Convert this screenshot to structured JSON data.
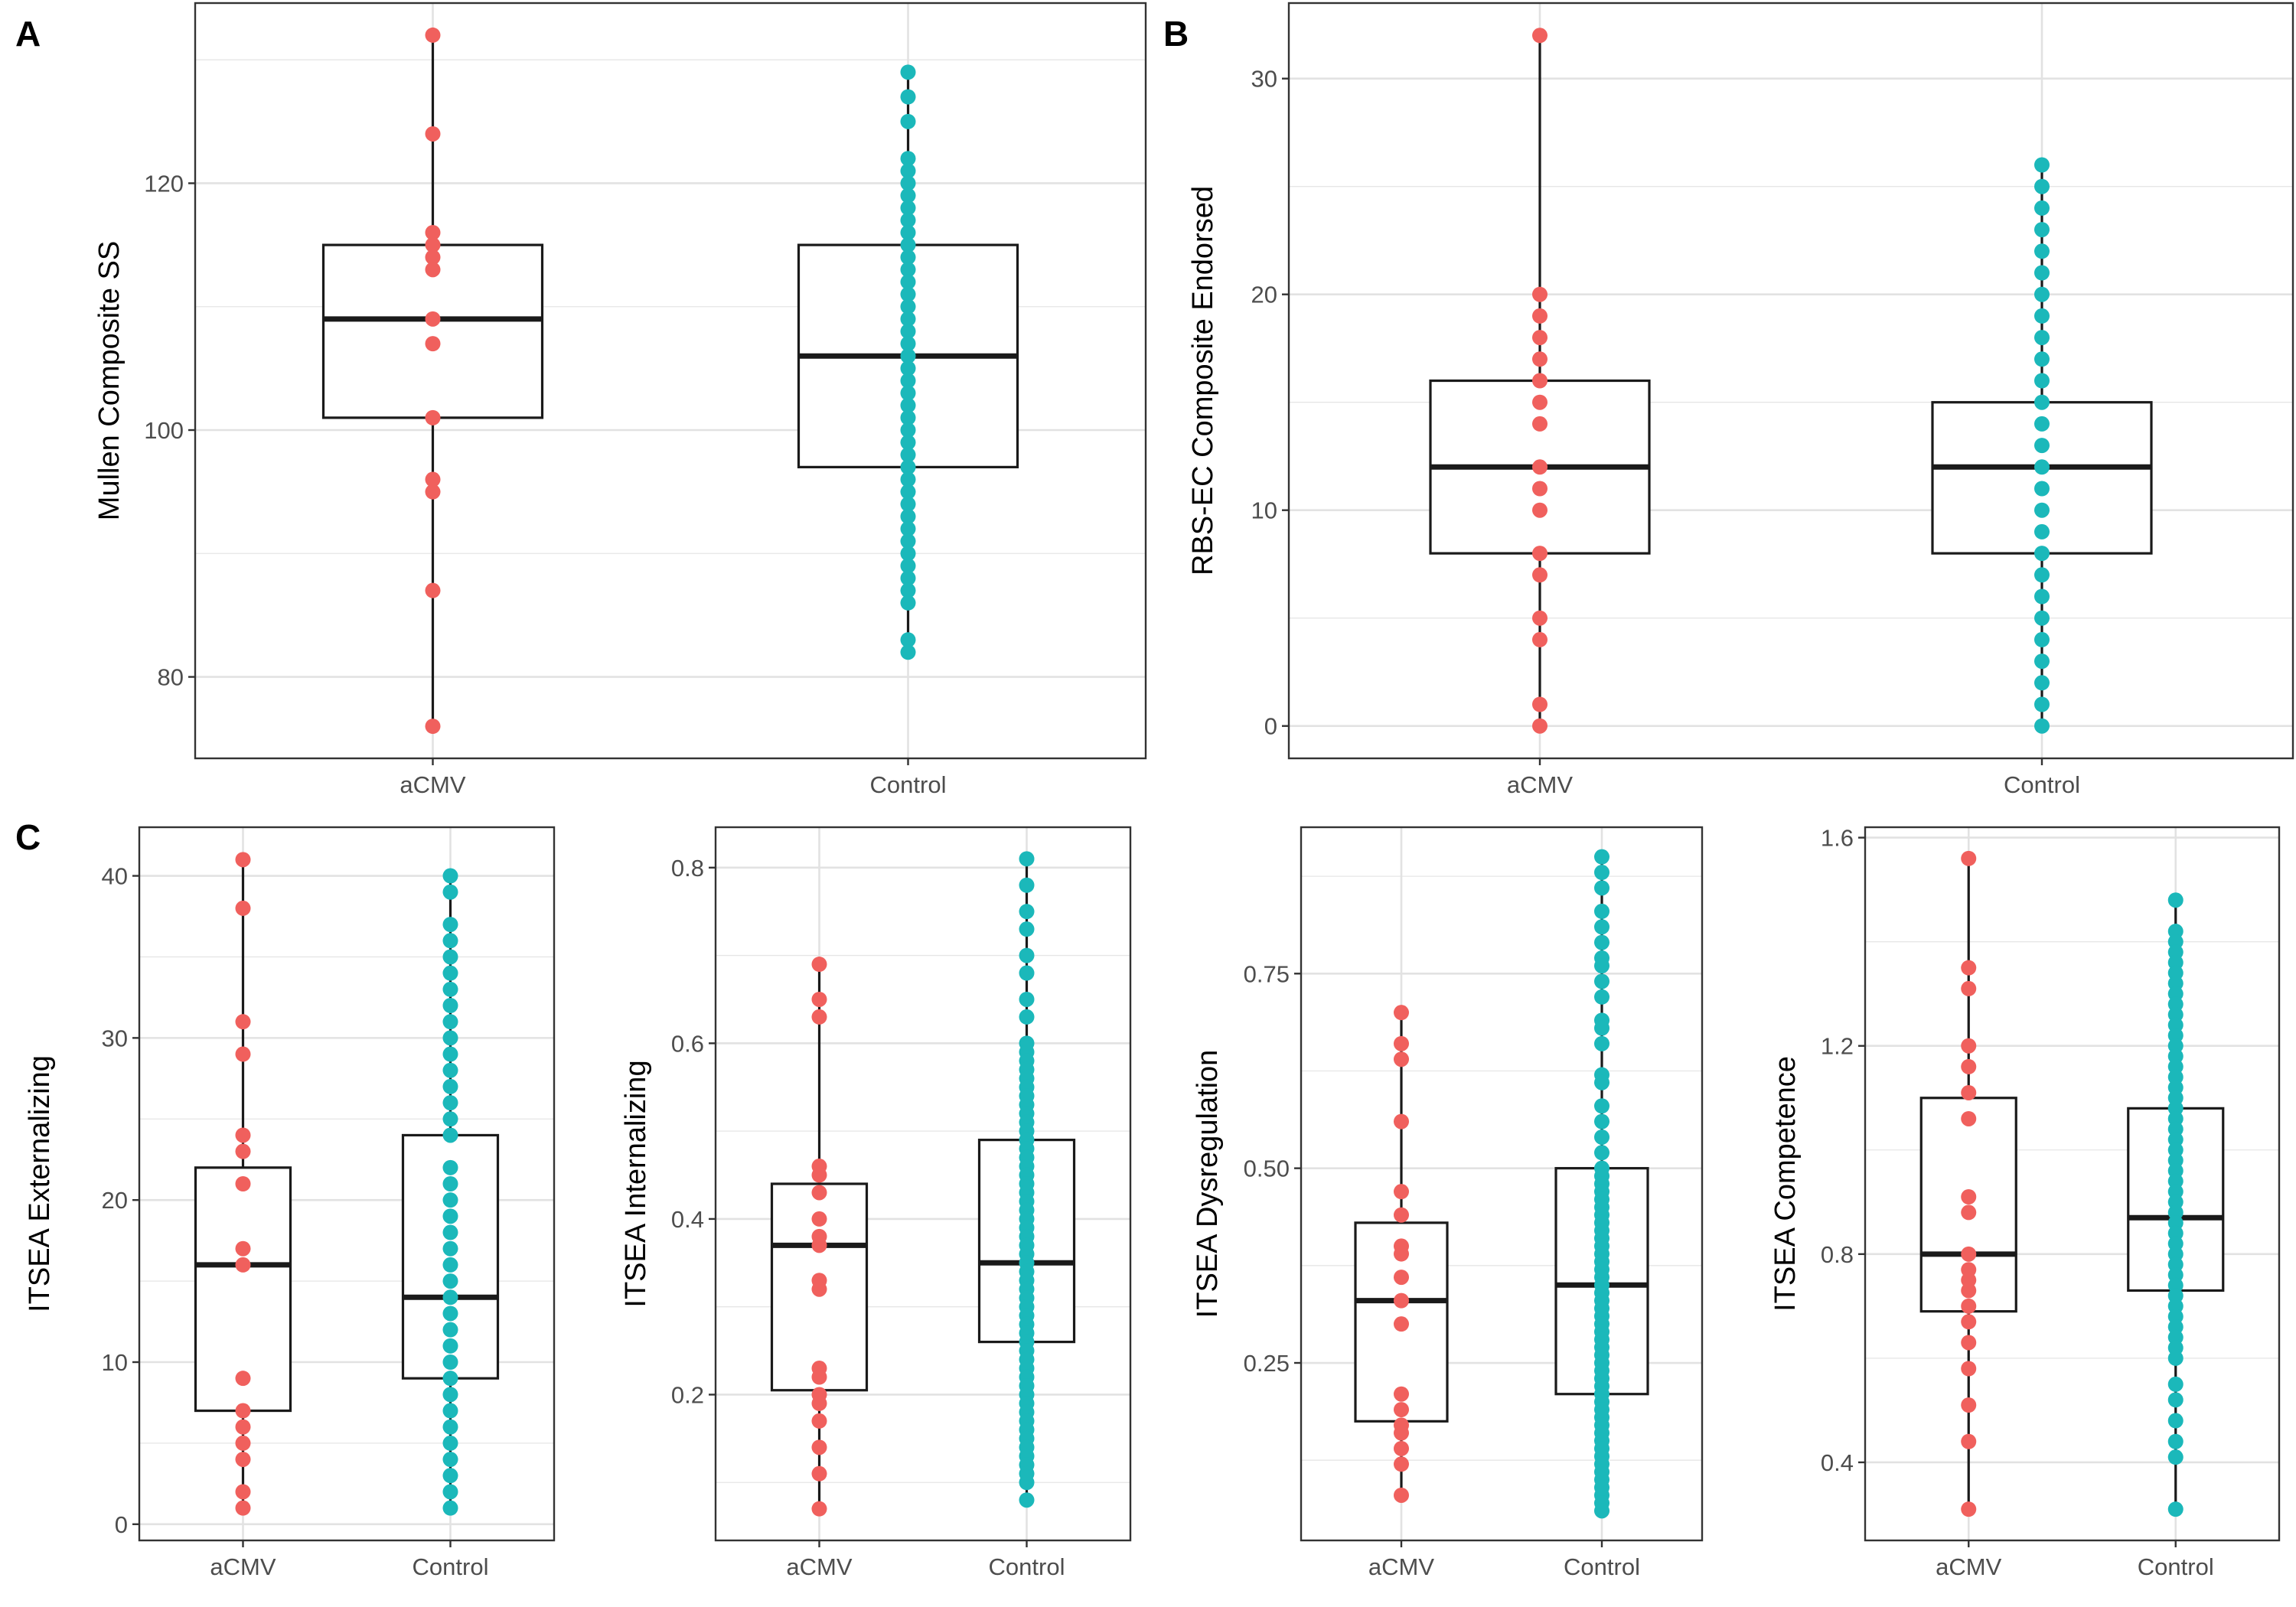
{
  "panel_labels": [
    "A",
    "B",
    "C"
  ],
  "colors": {
    "aCMV": "#F0605D",
    "Control": "#1BB8BA",
    "box": "#1a1a1a",
    "grid": "#e6e6e6",
    "frame": "#333333"
  },
  "chart_data": [
    {
      "type": "box",
      "panel": "A",
      "categories": [
        "aCMV",
        "Control"
      ],
      "ylabel": "Mullen Composite SS",
      "yticks": [
        80,
        100,
        120
      ],
      "ylim": [
        73.4,
        134.6
      ],
      "boxes": [
        {
          "group": "aCMV",
          "lower_whisker": 76,
          "q1": 101,
          "median": 109,
          "q3": 115,
          "upper_whisker": 132
        },
        {
          "group": "Control",
          "lower_whisker": 82,
          "q1": 97,
          "median": 106,
          "q3": 115,
          "upper_whisker": 129
        }
      ],
      "points": {
        "aCMV": [
          132,
          124,
          116,
          115,
          114,
          113,
          109,
          107,
          101,
          96,
          95,
          87,
          76
        ],
        "Control": [
          129,
          127,
          125,
          122,
          121,
          120,
          119,
          118,
          117,
          116,
          115,
          114,
          113,
          112,
          111,
          110,
          109,
          108,
          107,
          106,
          105,
          104,
          103,
          102,
          101,
          100,
          99,
          98,
          97,
          96,
          95,
          94,
          93,
          92,
          91,
          90,
          89,
          88,
          87,
          86,
          83,
          82
        ]
      }
    },
    {
      "type": "box",
      "panel": "B",
      "categories": [
        "aCMV",
        "Control"
      ],
      "ylabel": "RBS-EC Composite Endorsed",
      "yticks": [
        0,
        10,
        20,
        30
      ],
      "ylim": [
        -1.5,
        33.5
      ],
      "boxes": [
        {
          "group": "aCMV",
          "lower_whisker": 0,
          "q1": 8,
          "median": 12,
          "q3": 16,
          "upper_whisker": 32
        },
        {
          "group": "Control",
          "lower_whisker": 0,
          "q1": 8,
          "median": 12,
          "q3": 15,
          "upper_whisker": 26
        }
      ],
      "points": {
        "aCMV": [
          32,
          20,
          19,
          18,
          17,
          16,
          15,
          14,
          12,
          11,
          10,
          8,
          7,
          5,
          4,
          1,
          0
        ],
        "Control": [
          26,
          25,
          24,
          23,
          22,
          21,
          20,
          19,
          18,
          17,
          16,
          15,
          14,
          13,
          12,
          11,
          10,
          9,
          8,
          7,
          6,
          5,
          4,
          3,
          2,
          1,
          0
        ]
      }
    },
    {
      "type": "box",
      "panel": "C1",
      "categories": [
        "aCMV",
        "Control"
      ],
      "ylabel": "ITSEA Externalizing",
      "yticks": [
        0,
        10,
        20,
        30,
        40
      ],
      "ylim": [
        -1.0,
        43.0
      ],
      "boxes": [
        {
          "group": "aCMV",
          "lower_whisker": 1,
          "q1": 7,
          "median": 16,
          "q3": 22,
          "upper_whisker": 41
        },
        {
          "group": "Control",
          "lower_whisker": 1,
          "q1": 9,
          "median": 14,
          "q3": 24,
          "upper_whisker": 40
        }
      ],
      "points": {
        "aCMV": [
          41,
          38,
          31,
          29,
          24,
          23,
          21,
          17,
          16,
          9,
          7,
          6,
          5,
          4,
          2,
          1
        ],
        "Control": [
          40,
          39,
          37,
          36,
          35,
          34,
          33,
          32,
          31,
          30,
          29,
          28,
          27,
          26,
          25,
          24,
          22,
          21,
          20,
          19,
          18,
          17,
          16,
          15,
          14,
          13,
          12,
          11,
          10,
          9,
          8,
          7,
          6,
          5,
          4,
          3,
          2,
          1
        ]
      }
    },
    {
      "type": "box",
      "panel": "C2",
      "categories": [
        "aCMV",
        "Control"
      ],
      "ylabel": "ITSEA Internalizing",
      "yticks": [
        0.2,
        0.4,
        0.6,
        0.8
      ],
      "ylim": [
        0.034,
        0.846
      ],
      "boxes": [
        {
          "group": "aCMV",
          "lower_whisker": 0.07,
          "q1": 0.205,
          "median": 0.37,
          "q3": 0.44,
          "upper_whisker": 0.69
        },
        {
          "group": "Control",
          "lower_whisker": 0.08,
          "q1": 0.26,
          "median": 0.35,
          "q3": 0.49,
          "upper_whisker": 0.81
        }
      ],
      "points": {
        "aCMV": [
          0.69,
          0.65,
          0.63,
          0.46,
          0.45,
          0.43,
          0.4,
          0.38,
          0.37,
          0.33,
          0.32,
          0.23,
          0.22,
          0.2,
          0.19,
          0.17,
          0.14,
          0.11,
          0.07
        ],
        "Control": [
          0.81,
          0.78,
          0.75,
          0.73,
          0.7,
          0.68,
          0.65,
          0.63,
          0.6,
          0.59,
          0.58,
          0.57,
          0.56,
          0.55,
          0.54,
          0.53,
          0.52,
          0.51,
          0.5,
          0.49,
          0.48,
          0.47,
          0.46,
          0.45,
          0.44,
          0.43,
          0.42,
          0.41,
          0.4,
          0.39,
          0.38,
          0.37,
          0.36,
          0.35,
          0.34,
          0.33,
          0.32,
          0.31,
          0.3,
          0.29,
          0.28,
          0.27,
          0.26,
          0.25,
          0.24,
          0.23,
          0.22,
          0.21,
          0.2,
          0.19,
          0.18,
          0.17,
          0.16,
          0.15,
          0.14,
          0.13,
          0.12,
          0.11,
          0.1,
          0.08
        ]
      }
    },
    {
      "type": "box",
      "panel": "C3",
      "categories": [
        "aCMV",
        "Control"
      ],
      "ylabel": "ITSEA Dysregulation",
      "yticks": [
        0.25,
        0.5,
        0.75
      ],
      "ylim": [
        0.022,
        0.938
      ],
      "boxes": [
        {
          "group": "aCMV",
          "lower_whisker": 0.08,
          "q1": 0.175,
          "median": 0.33,
          "q3": 0.43,
          "upper_whisker": 0.7
        },
        {
          "group": "Control",
          "lower_whisker": 0.06,
          "q1": 0.21,
          "median": 0.35,
          "q3": 0.5,
          "upper_whisker": 0.9
        }
      ],
      "points": {
        "aCMV": [
          0.7,
          0.66,
          0.64,
          0.56,
          0.47,
          0.44,
          0.4,
          0.39,
          0.36,
          0.33,
          0.3,
          0.21,
          0.19,
          0.17,
          0.16,
          0.14,
          0.12,
          0.08
        ],
        "Control": [
          0.9,
          0.88,
          0.86,
          0.83,
          0.81,
          0.79,
          0.77,
          0.76,
          0.74,
          0.72,
          0.69,
          0.68,
          0.66,
          0.62,
          0.61,
          0.58,
          0.56,
          0.54,
          0.52,
          0.5,
          0.49,
          0.48,
          0.47,
          0.46,
          0.45,
          0.44,
          0.43,
          0.42,
          0.41,
          0.4,
          0.39,
          0.38,
          0.37,
          0.36,
          0.35,
          0.34,
          0.33,
          0.32,
          0.31,
          0.3,
          0.29,
          0.28,
          0.27,
          0.26,
          0.25,
          0.24,
          0.23,
          0.22,
          0.21,
          0.2,
          0.19,
          0.18,
          0.17,
          0.16,
          0.15,
          0.14,
          0.13,
          0.12,
          0.11,
          0.1,
          0.09,
          0.08,
          0.07,
          0.06
        ]
      }
    },
    {
      "type": "box",
      "panel": "C4",
      "categories": [
        "aCMV",
        "Control"
      ],
      "ylabel": "ITSEA Competence",
      "yticks": [
        0.4,
        0.8,
        1.2,
        1.6
      ],
      "ylim": [
        0.25,
        1.62
      ],
      "boxes": [
        {
          "group": "aCMV",
          "lower_whisker": 0.31,
          "q1": 0.69,
          "median": 0.8,
          "q3": 1.1,
          "upper_whisker": 1.56
        },
        {
          "group": "Control",
          "lower_whisker": 0.31,
          "q1": 0.73,
          "median": 0.87,
          "q3": 1.08,
          "upper_whisker": 1.48
        }
      ],
      "points": {
        "aCMV": [
          1.56,
          1.35,
          1.31,
          1.2,
          1.16,
          1.11,
          1.06,
          0.91,
          0.88,
          0.8,
          0.77,
          0.75,
          0.73,
          0.7,
          0.67,
          0.63,
          0.58,
          0.51,
          0.44,
          0.31
        ],
        "Control": [
          1.48,
          1.42,
          1.4,
          1.38,
          1.36,
          1.34,
          1.32,
          1.3,
          1.28,
          1.26,
          1.24,
          1.22,
          1.2,
          1.18,
          1.16,
          1.14,
          1.12,
          1.1,
          1.08,
          1.06,
          1.04,
          1.02,
          1.0,
          0.98,
          0.96,
          0.94,
          0.92,
          0.9,
          0.88,
          0.86,
          0.84,
          0.82,
          0.8,
          0.78,
          0.76,
          0.74,
          0.72,
          0.7,
          0.68,
          0.66,
          0.64,
          0.62,
          0.6,
          0.55,
          0.52,
          0.48,
          0.44,
          0.41,
          0.31
        ]
      }
    }
  ]
}
